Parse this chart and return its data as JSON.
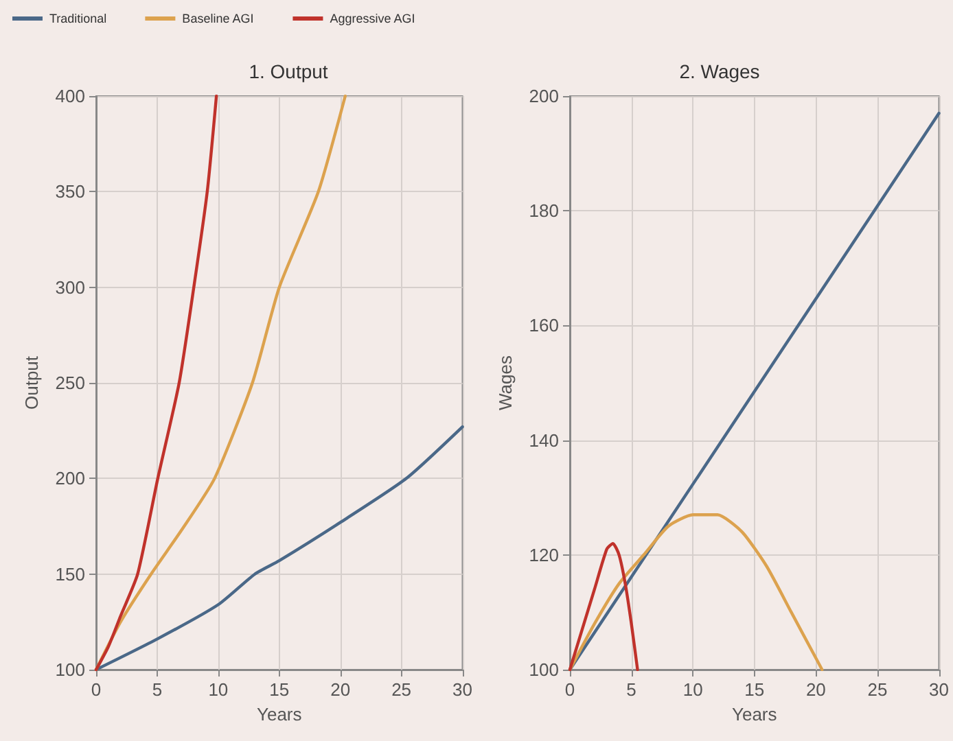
{
  "chart_data": [
    {
      "type": "line",
      "title": "1. Output",
      "xlabel": "Years",
      "ylabel": "Output",
      "xlim": [
        0,
        30
      ],
      "xticks": [
        0,
        5,
        10,
        15,
        20,
        25,
        30
      ],
      "ylim": [
        100,
        400
      ],
      "yticks": [
        100,
        150,
        200,
        250,
        300,
        350,
        400
      ],
      "grid": true,
      "legend": "top left",
      "marker": "none",
      "line_style": "solid",
      "series": [
        {
          "name": "Traditional",
          "color": "#4a6888",
          "x": [
            0,
            5,
            10,
            13,
            15,
            20,
            25.4,
            30
          ],
          "values": [
            100,
            116,
            134,
            150,
            157,
            177,
            200,
            227
          ]
        },
        {
          "name": "Baseline AGI",
          "color": "#dca24e",
          "x": [
            0,
            2,
            4.5,
            7,
            9.7,
            12.8,
            15,
            18.2,
            20.4
          ],
          "values": [
            100,
            125,
            150,
            173,
            200,
            250,
            300,
            350,
            400
          ]
        },
        {
          "name": "Aggressive AGI",
          "color": "#c0322b",
          "x": [
            0,
            1,
            2,
            3.4,
            5.05,
            6.8,
            8,
            9.1,
            9.85
          ],
          "values": [
            100,
            112,
            128,
            150,
            200,
            250,
            300,
            350,
            400
          ]
        }
      ]
    },
    {
      "type": "line",
      "title": "2. Wages",
      "xlabel": "Years",
      "ylabel": "Wages",
      "xlim": [
        0,
        30
      ],
      "xticks": [
        0,
        5,
        10,
        15,
        20,
        25,
        30
      ],
      "ylim": [
        100,
        200
      ],
      "yticks": [
        100,
        120,
        140,
        160,
        180,
        200
      ],
      "grid": true,
      "marker": "none",
      "line_style": "solid",
      "series": [
        {
          "color": "#4a6888",
          "x": [
            0,
            30
          ],
          "values": [
            100,
            197
          ]
        },
        {
          "color": "#dca24e",
          "x": [
            0,
            2,
            4,
            6,
            8,
            10,
            12,
            14,
            16,
            18,
            20,
            20.5
          ],
          "values": [
            100,
            108,
            115,
            120,
            125,
            127,
            127,
            124,
            118,
            110,
            102,
            100
          ]
        },
        {
          "color": "#c0322b",
          "x": [
            0,
            1,
            2,
            3,
            3.5,
            4,
            4.5,
            5,
            5.5
          ],
          "values": [
            100,
            107,
            114,
            121,
            122,
            120,
            115,
            108,
            100
          ]
        }
      ]
    }
  ]
}
